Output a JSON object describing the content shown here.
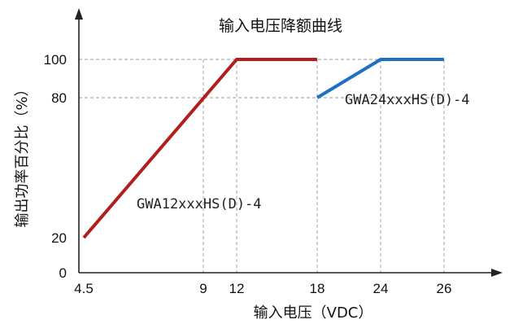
{
  "chart_data": {
    "type": "line",
    "title": "输入电压降额曲线",
    "xlabel": "输入电压（VDC）",
    "ylabel": "输出功率百分比（%）",
    "x_ticks": [
      "4.5",
      "9",
      "12",
      "18",
      "24",
      "26"
    ],
    "y_ticks": [
      "0",
      "20",
      "80",
      "100"
    ],
    "grid": "dashed reference lines",
    "series": [
      {
        "name": "GWA12xxxHS(D)-4",
        "color": "#b01e1e",
        "points": [
          [
            4.5,
            20
          ],
          [
            12,
            100
          ],
          [
            18,
            100
          ]
        ]
      },
      {
        "name": "GWA24xxxHS(D)-4",
        "color": "#1f6fc4",
        "points": [
          [
            18,
            80
          ],
          [
            24,
            100
          ],
          [
            26,
            100
          ]
        ]
      }
    ],
    "dashed_refs": {
      "vertical": [
        9,
        12,
        18,
        24,
        26
      ],
      "horizontal": [
        80,
        100
      ]
    }
  }
}
